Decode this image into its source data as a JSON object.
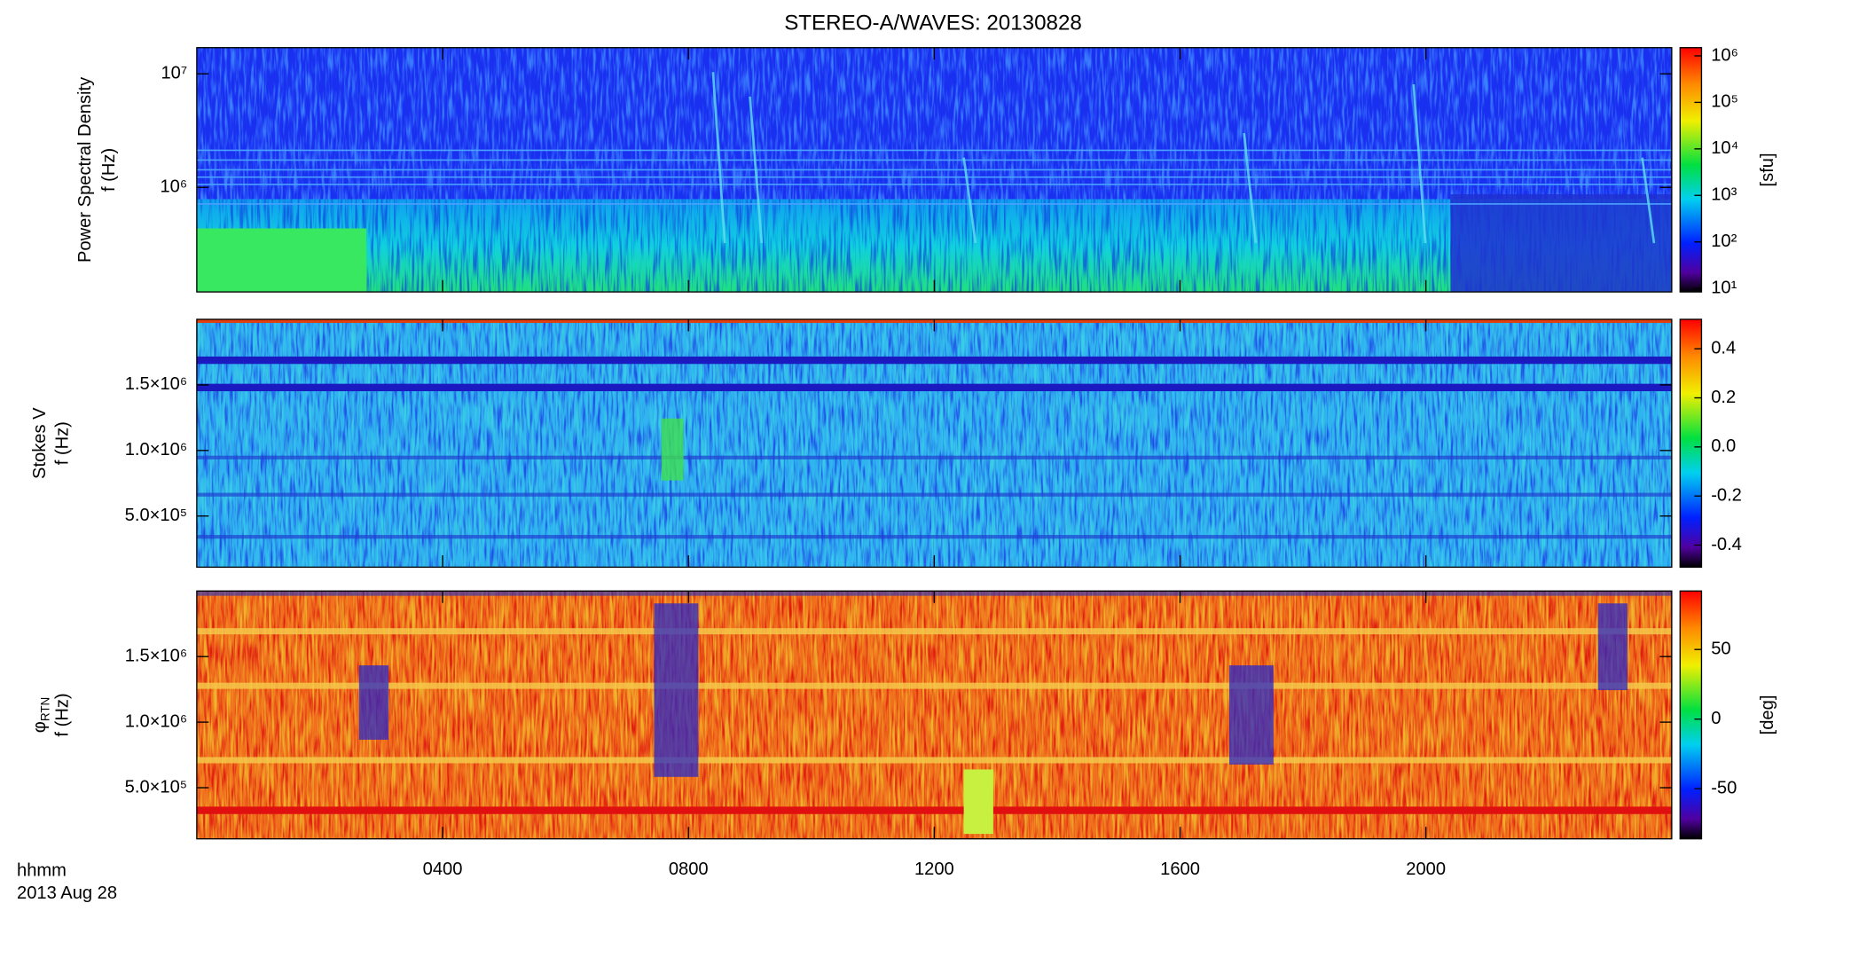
{
  "title": "STEREO-A/WAVES: 20130828",
  "x_axis": {
    "label_lines": [
      "hhmm",
      "2013 Aug 28"
    ],
    "xlim": [
      0,
      24
    ],
    "xticks": [
      {
        "value": 4,
        "label": "0400"
      },
      {
        "value": 8,
        "label": "0800"
      },
      {
        "value": 12,
        "label": "1200"
      },
      {
        "value": 16,
        "label": "1600"
      },
      {
        "value": 20,
        "label": "2000"
      }
    ]
  },
  "chart_data": [
    {
      "type": "heatmap",
      "ylabel": [
        "Power Spectral Density",
        "f (Hz)"
      ],
      "ylog": true,
      "ylim": [
        120000,
        17000000
      ],
      "yticks": [
        {
          "value": 1000000,
          "label": "10⁶"
        },
        {
          "value": 10000000,
          "label": "10⁷"
        }
      ],
      "colorbar": {
        "label": "[sfu]",
        "log": true,
        "clim": [
          8.4,
          1500000
        ],
        "cticks": [
          {
            "value": 10,
            "label": "10¹"
          },
          {
            "value": 100,
            "label": "10²"
          },
          {
            "value": 1000,
            "label": "10³"
          },
          {
            "value": 10000,
            "label": "10⁴"
          },
          {
            "value": 100000,
            "label": "10⁵"
          },
          {
            "value": 1000000,
            "label": "10⁶"
          }
        ]
      }
    },
    {
      "type": "heatmap",
      "ylabel": [
        "Stokes V",
        "f (Hz)"
      ],
      "ylog": false,
      "ylim": [
        110000,
        2000000
      ],
      "yticks": [
        {
          "value": 500000,
          "label": "5.0×10⁵"
        },
        {
          "value": 1000000,
          "label": "1.0×10⁶"
        },
        {
          "value": 1500000,
          "label": "1.5×10⁶"
        }
      ],
      "colorbar": {
        "label": null,
        "log": false,
        "clim": [
          -0.49,
          0.52
        ],
        "cticks": [
          -0.4,
          -0.2,
          {
            "value": 0,
            "label": "0.0"
          },
          0.2,
          0.4
        ]
      }
    },
    {
      "type": "heatmap",
      "ylabel": [
        "φ",
        "f (Hz)"
      ],
      "ylabel_subscript": "RTN",
      "ylog": false,
      "ylim": [
        110000,
        2000000
      ],
      "yticks": [
        {
          "value": 500000,
          "label": "5.0×10⁵"
        },
        {
          "value": 1000000,
          "label": "1.0×10⁶"
        },
        {
          "value": 1500000,
          "label": "1.5×10⁶"
        }
      ],
      "colorbar": {
        "label": "[deg]",
        "log": false,
        "clim": [
          -86,
          92
        ],
        "cticks": [
          -50,
          0,
          50
        ]
      }
    }
  ]
}
